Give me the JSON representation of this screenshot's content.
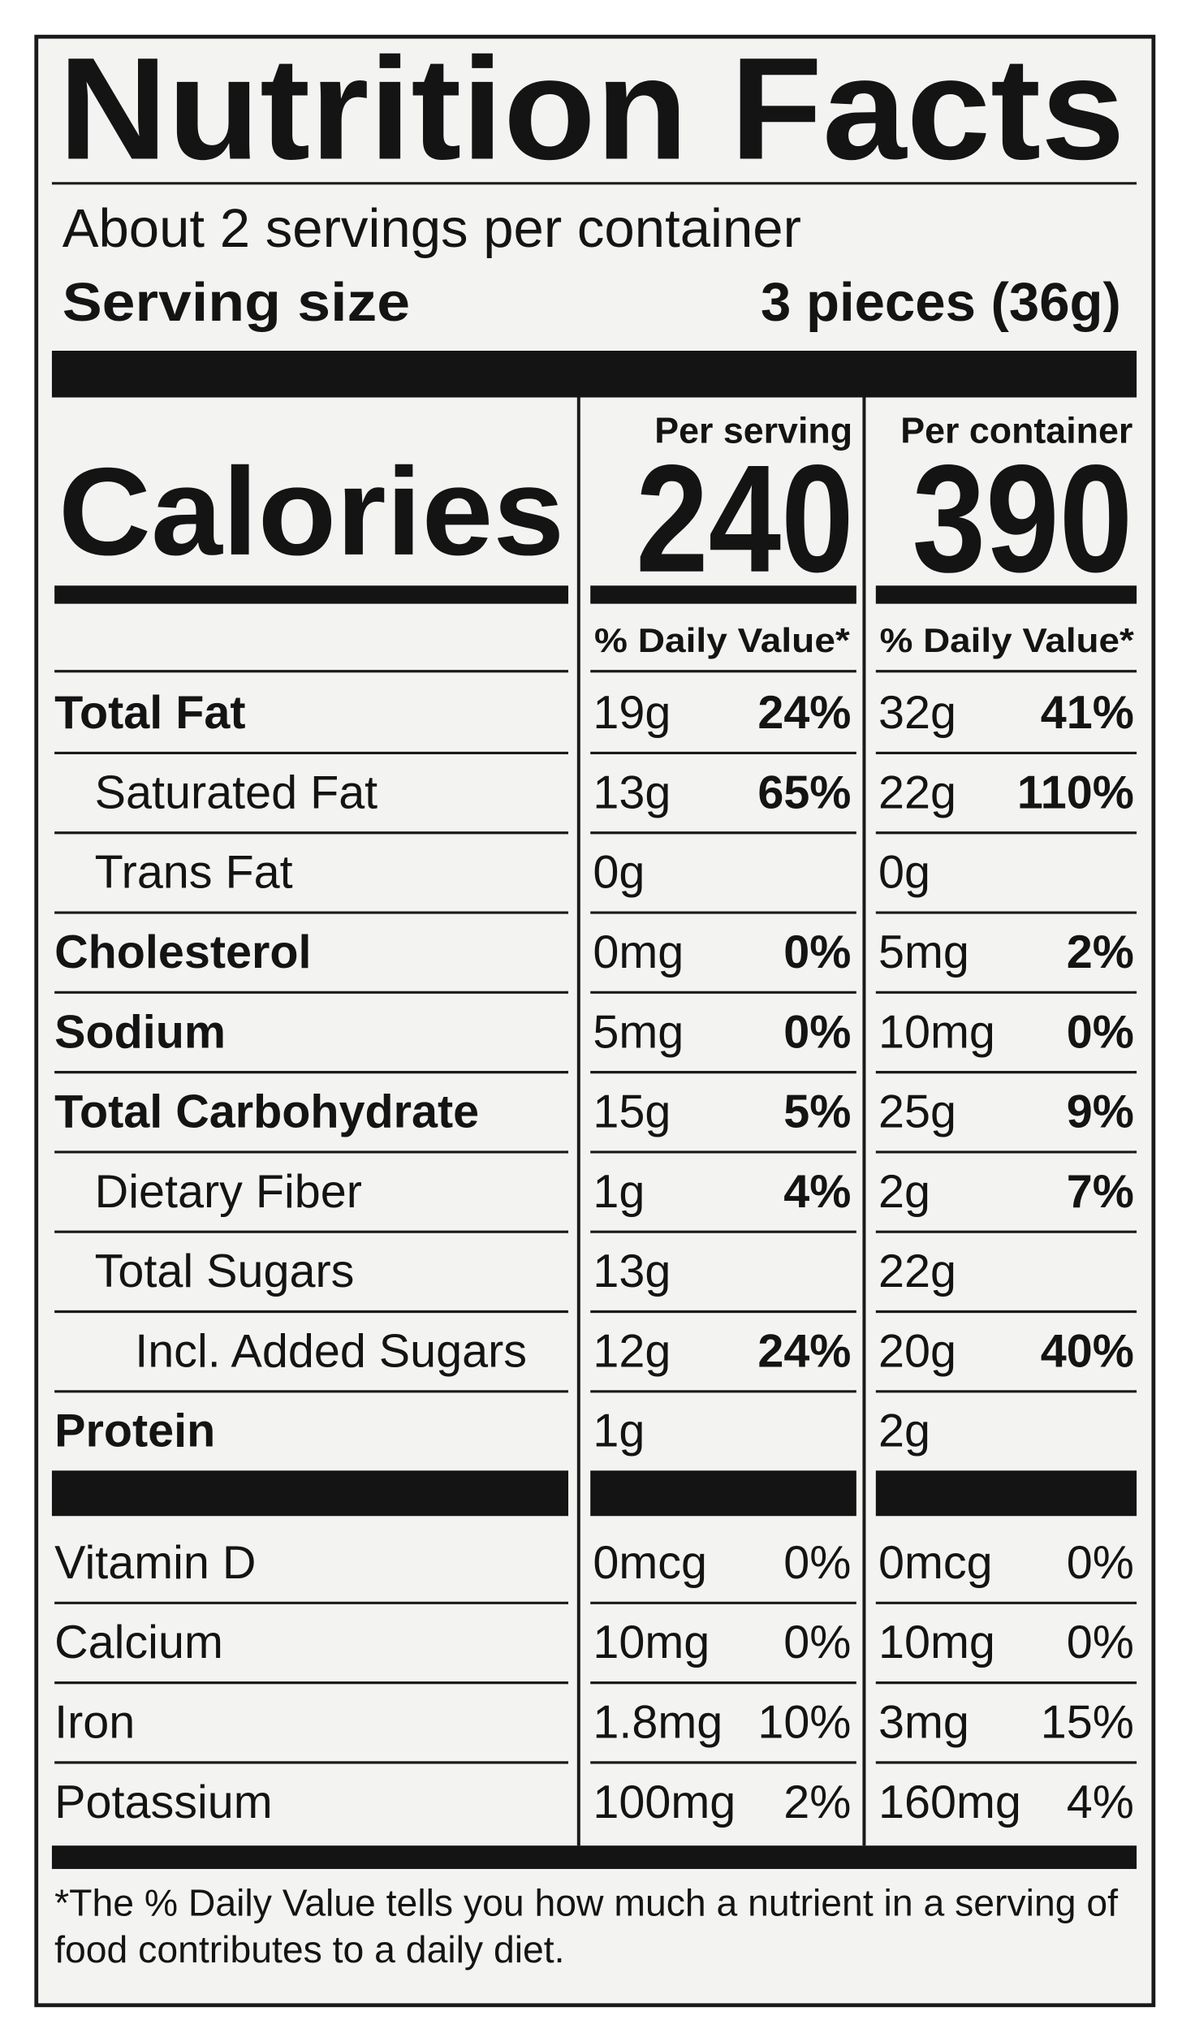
{
  "header": {
    "title": "Nutrition Facts",
    "servings": "About 2 servings per container",
    "serving_size_label": "Serving size",
    "serving_size": "3 pieces (36g)"
  },
  "calories": {
    "label": "Calories",
    "per_serving_header": "Per serving",
    "per_container_header": "Per container",
    "per_serving": 240,
    "per_container": 390,
    "dv_header": "% Daily Value*"
  },
  "nutrients": [
    {
      "name": "Total Fat",
      "serving_amount": "19g",
      "serving_dv": "24%",
      "container_amount": "32g",
      "container_dv": "41%"
    },
    {
      "name": "Saturated Fat",
      "serving_amount": "13g",
      "serving_dv": "65%",
      "container_amount": "22g",
      "container_dv": "110%"
    },
    {
      "name": "Trans Fat",
      "serving_amount": "0g",
      "container_amount": "0g"
    },
    {
      "name": "Cholesterol",
      "serving_amount": "0mg",
      "serving_dv": "0%",
      "container_amount": "5mg",
      "container_dv": "2%"
    },
    {
      "name": "Sodium",
      "serving_amount": "5mg",
      "serving_dv": "0%",
      "container_amount": "10mg",
      "container_dv": "0%"
    },
    {
      "name": "Total Carbohydrate",
      "serving_amount": "15g",
      "serving_dv": "5%",
      "container_amount": "25g",
      "container_dv": "9%"
    },
    {
      "name": "Dietary Fiber",
      "serving_amount": "1g",
      "serving_dv": "4%",
      "container_amount": "2g",
      "container_dv": "7%"
    },
    {
      "name": "Total Sugars",
      "serving_amount": "13g",
      "container_amount": "22g"
    },
    {
      "name": "Incl. Added Sugars",
      "serving_amount": "12g",
      "serving_dv": "24%",
      "container_amount": "20g",
      "container_dv": "40%"
    },
    {
      "name": "Protein",
      "serving_amount": "1g",
      "container_amount": "2g"
    }
  ],
  "vitamins": [
    {
      "name": "Vitamin D",
      "serving_amount": "0mcg",
      "serving_dv": "0%",
      "container_amount": "0mcg",
      "container_dv": "0%"
    },
    {
      "name": "Calcium",
      "serving_amount": "10mg",
      "serving_dv": "0%",
      "container_amount": "10mg",
      "container_dv": "0%"
    },
    {
      "name": "Iron",
      "serving_amount": "1.8mg",
      "serving_dv": "10%",
      "container_amount": "3mg",
      "container_dv": "15%"
    },
    {
      "name": "Potassium",
      "serving_amount": "100mg",
      "serving_dv": "2%",
      "container_amount": "160mg",
      "container_dv": "4%"
    }
  ],
  "footnote": [
    "*The % Daily Value tells you how much a nutrient in a serving of",
    "food contributes to a daily diet."
  ]
}
